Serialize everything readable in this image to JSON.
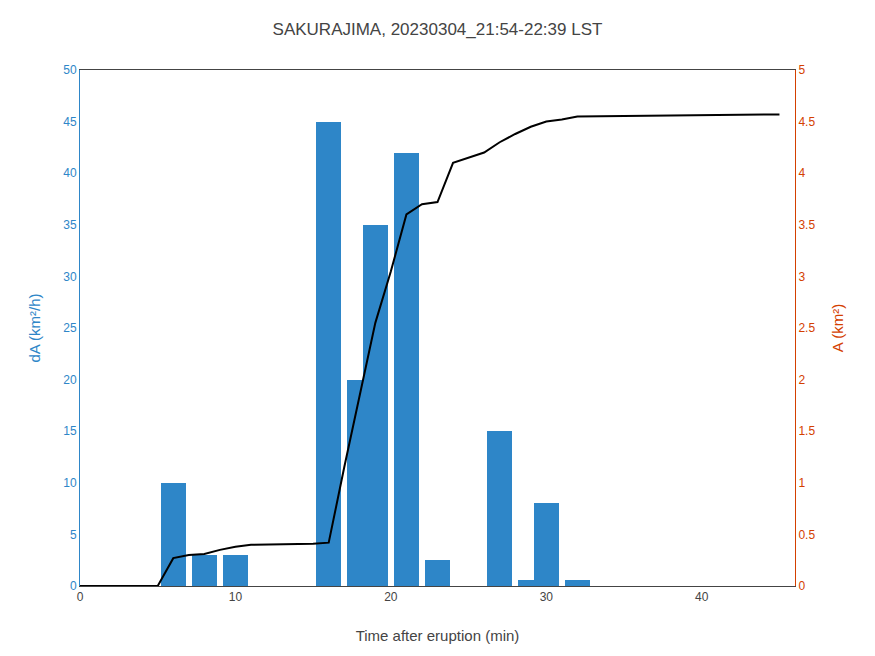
{
  "chart_data": {
    "type": "bar",
    "title": "SAKURAJIMA, 20230304_21:54-22:39 LST",
    "xlabel": "Time after eruption (min)",
    "ylabel": "dA (km²/h)",
    "y2label": "A (km²)",
    "series": [
      {
        "type": "bar",
        "axis": "y",
        "color": "#2e86c8",
        "x": [
          6,
          8,
          10,
          16,
          18,
          19,
          21,
          23,
          27,
          29,
          30,
          32
        ],
        "values": [
          10,
          3,
          3,
          45,
          20,
          35,
          42,
          2.5,
          15,
          0.6,
          8,
          0.6
        ]
      },
      {
        "type": "line",
        "axis": "y2",
        "color": "#000000",
        "line_style": "solid",
        "x": [
          0,
          5,
          6,
          7,
          8,
          9,
          10,
          11,
          15,
          16,
          17,
          18,
          19,
          20,
          21,
          22,
          23,
          24,
          25,
          26,
          27,
          28,
          29,
          30,
          31,
          32,
          45
        ],
        "values": [
          0,
          0,
          0.27,
          0.3,
          0.31,
          0.35,
          0.38,
          0.4,
          0.41,
          0.42,
          1.15,
          1.85,
          2.55,
          3.05,
          3.6,
          3.7,
          3.72,
          4.1,
          4.15,
          4.2,
          4.3,
          4.38,
          4.45,
          4.5,
          4.52,
          4.55,
          4.57
        ]
      }
    ],
    "xlim": [
      0,
      46
    ],
    "xticks": [
      0,
      10,
      20,
      30,
      40
    ],
    "ylim": [
      0,
      50
    ],
    "yticks": [
      0,
      5,
      10,
      15,
      20,
      25,
      30,
      35,
      40,
      45,
      50
    ],
    "y2lim": [
      0,
      5
    ],
    "y2ticks": [
      0,
      0.5,
      1,
      1.5,
      2,
      2.5,
      3,
      3.5,
      4,
      4.5,
      5
    ],
    "grid": false
  }
}
